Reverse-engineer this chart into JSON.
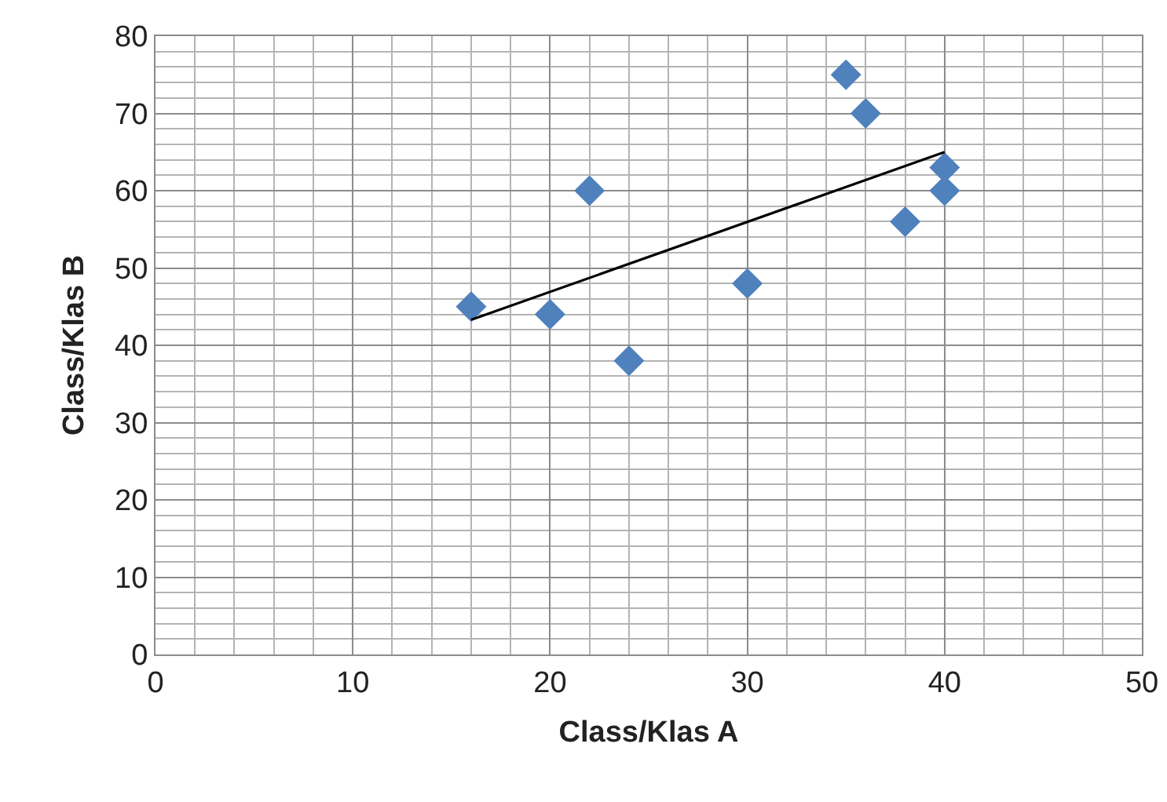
{
  "chart_data": {
    "type": "scatter",
    "xlabel": "Class/Klas A",
    "ylabel": "Class/Klas B",
    "xlim": [
      0,
      50
    ],
    "ylim": [
      0,
      80
    ],
    "xticks": [
      0,
      10,
      20,
      30,
      40,
      50
    ],
    "yticks": [
      0,
      10,
      20,
      30,
      40,
      50,
      60,
      70,
      80
    ],
    "grid": true,
    "marker": "diamond",
    "legend": false,
    "series": [
      {
        "color": "#4f81bd",
        "x": [
          16,
          20,
          22,
          24,
          30,
          35,
          36,
          38,
          40,
          40
        ],
        "values": [
          45,
          44,
          60,
          38,
          48,
          75,
          70,
          56,
          63,
          60
        ]
      },
      {
        "type": "line",
        "marker": "none",
        "color": "#000000",
        "x": [
          16,
          40
        ],
        "values": [
          43.3,
          65
        ]
      }
    ]
  }
}
